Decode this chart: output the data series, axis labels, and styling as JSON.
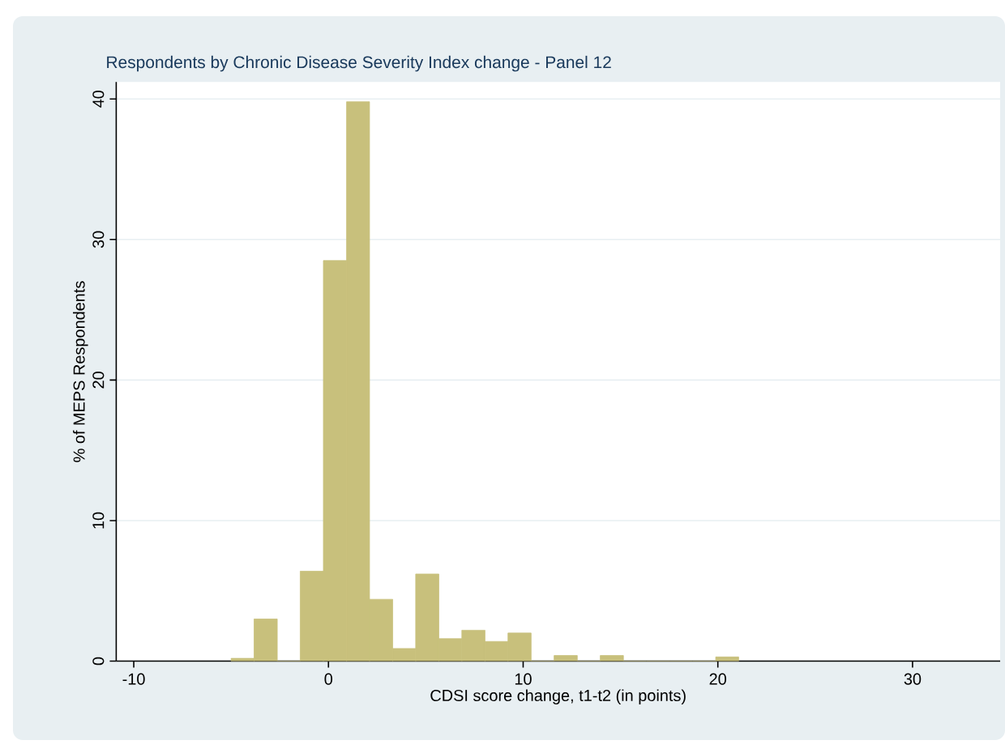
{
  "chart_data": {
    "type": "histogram",
    "title": "Respondents by Chronic Disease Severity Index change - Panel 12",
    "xlabel": "CDSI score change, t1-t2 (in points)",
    "ylabel": "% of MEPS Respondents",
    "bins": [
      -5,
      -3.82,
      -2.63,
      -1.45,
      -0.26,
      0.93,
      2.11,
      3.3,
      4.48,
      5.67,
      6.85,
      8.04,
      9.22,
      10.41,
      11.59,
      12.78,
      13.96,
      15.15,
      16.33,
      17.52,
      18.7,
      19.89,
      21.07
    ],
    "values": [
      0.2,
      3.0,
      0,
      6.4,
      28.5,
      39.8,
      4.4,
      0.9,
      6.2,
      1.6,
      2.2,
      1.4,
      2.0,
      0,
      0.4,
      0,
      0.4,
      0,
      0,
      0,
      0,
      0.3
    ],
    "color": "#c8c07c",
    "xlim": [
      -10.9,
      34.5
    ],
    "ylim": [
      0,
      41.2
    ],
    "xticks": [
      -10,
      0,
      10,
      20,
      30
    ],
    "yticks": [
      0,
      10,
      20,
      30,
      40
    ],
    "grid": "y"
  }
}
